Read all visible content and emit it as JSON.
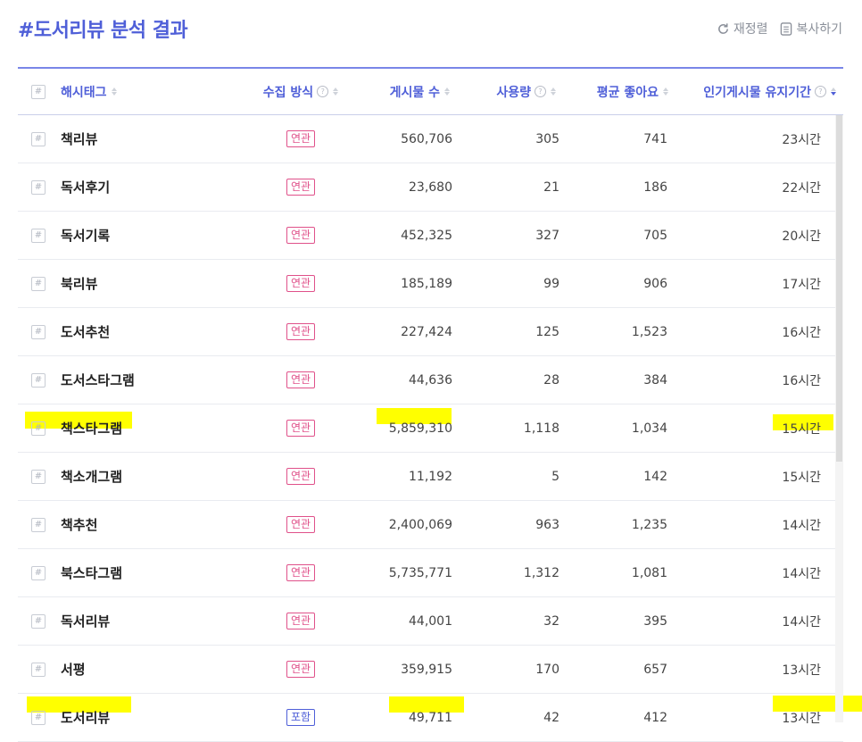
{
  "title": "#도서리뷰 분석 결과",
  "actions": {
    "refresh_label": "재정렬",
    "copy_label": "복사하기"
  },
  "colors": {
    "accent": "#4f5fd8",
    "related": "#e0518a",
    "highlight": "#ffff00"
  },
  "columns": {
    "hash": "#",
    "tag": "해시태그",
    "method": "수집 방식",
    "posts": "게시물 수",
    "usage": "사용량",
    "likes": "평균 좋아요",
    "duration": "인기게시물 유지기간"
  },
  "rows": [
    {
      "tag": "책리뷰",
      "method": "연관",
      "posts": "560,706",
      "usage": "305",
      "likes": "741",
      "duration": "23시간"
    },
    {
      "tag": "독서후기",
      "method": "연관",
      "posts": "23,680",
      "usage": "21",
      "likes": "186",
      "duration": "22시간"
    },
    {
      "tag": "독서기록",
      "method": "연관",
      "posts": "452,325",
      "usage": "327",
      "likes": "705",
      "duration": "20시간"
    },
    {
      "tag": "북리뷰",
      "method": "연관",
      "posts": "185,189",
      "usage": "99",
      "likes": "906",
      "duration": "17시간"
    },
    {
      "tag": "도서추천",
      "method": "연관",
      "posts": "227,424",
      "usage": "125",
      "likes": "1,523",
      "duration": "16시간"
    },
    {
      "tag": "도서스타그램",
      "method": "연관",
      "posts": "44,636",
      "usage": "28",
      "likes": "384",
      "duration": "16시간"
    },
    {
      "tag": "책스타그램",
      "method": "연관",
      "posts": "5,859,310",
      "usage": "1,118",
      "likes": "1,034",
      "duration": "15시간"
    },
    {
      "tag": "책소개그램",
      "method": "연관",
      "posts": "11,192",
      "usage": "5",
      "likes": "142",
      "duration": "15시간"
    },
    {
      "tag": "책추천",
      "method": "연관",
      "posts": "2,400,069",
      "usage": "963",
      "likes": "1,235",
      "duration": "14시간"
    },
    {
      "tag": "북스타그램",
      "method": "연관",
      "posts": "5,735,771",
      "usage": "1,312",
      "likes": "1,081",
      "duration": "14시간"
    },
    {
      "tag": "독서리뷰",
      "method": "연관",
      "posts": "44,001",
      "usage": "32",
      "likes": "395",
      "duration": "14시간"
    },
    {
      "tag": "서평",
      "method": "연관",
      "posts": "359,915",
      "usage": "170",
      "likes": "657",
      "duration": "13시간"
    },
    {
      "tag": "도서리뷰",
      "method": "포함",
      "posts": "49,711",
      "usage": "42",
      "likes": "412",
      "duration": "13시간"
    }
  ]
}
